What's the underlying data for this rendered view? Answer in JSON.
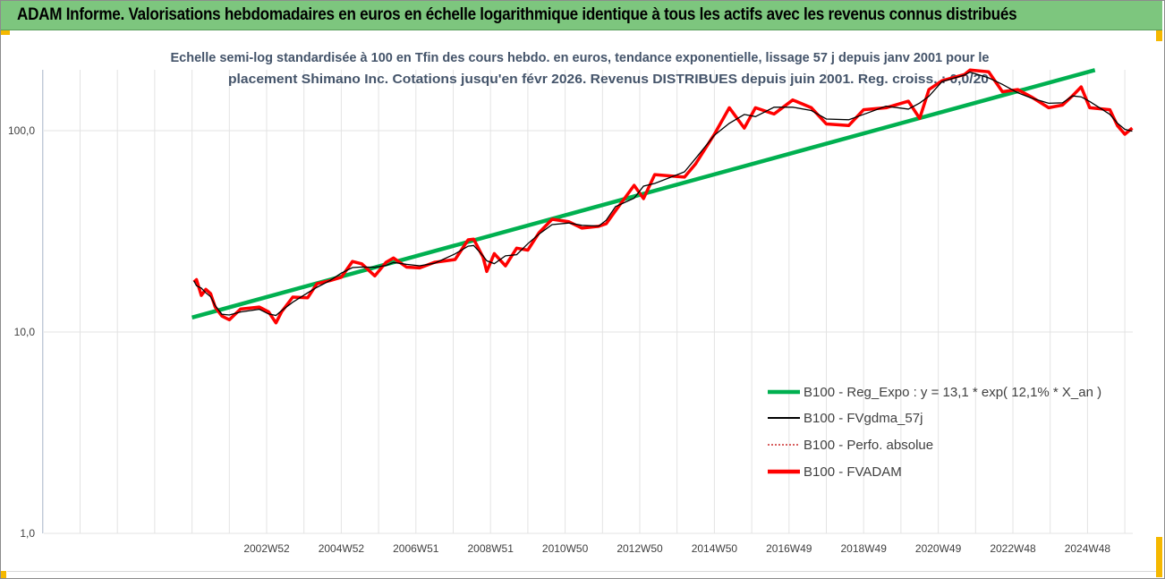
{
  "header": {
    "title": "ADAM Informe. Valorisations hebdomadaires en euros en échelle logarithmique identique à tous les actifs avec les revenus connus distribués"
  },
  "chart_data": {
    "type": "line",
    "title_lines": [
      "Echelle semi-log standardisée à 100 en Tfin des cours hebdo. en euros, tendance exponentielle, lissage 57 j depuis janv 2001 pour le",
      "placement Shimano Inc. Cotations jusqu'en févr 2026. Revenus DISTRIBUES depuis juin 2001. Reg. croiss. : 0,0/20"
    ],
    "y_scale": "log",
    "ylim": [
      1,
      200
    ],
    "xlim": [
      1997.0,
      2026.3
    ],
    "y_ticks": [
      {
        "value": 1,
        "label": "1,0"
      },
      {
        "value": 10,
        "label": "10,0"
      },
      {
        "value": 100,
        "label": "100,0"
      }
    ],
    "x_ticks": [
      {
        "value": 2003.0,
        "label": "2002W52"
      },
      {
        "value": 2005.0,
        "label": "2004W52"
      },
      {
        "value": 2007.0,
        "label": "2006W51"
      },
      {
        "value": 2009.0,
        "label": "2008W51"
      },
      {
        "value": 2011.0,
        "label": "2010W50"
      },
      {
        "value": 2013.0,
        "label": "2012W50"
      },
      {
        "value": 2015.0,
        "label": "2014W50"
      },
      {
        "value": 2017.0,
        "label": "2016W49"
      },
      {
        "value": 2019.0,
        "label": "2018W49"
      },
      {
        "value": 2021.0,
        "label": "2020W49"
      },
      {
        "value": 2023.0,
        "label": "2022W48"
      },
      {
        "value": 2025.0,
        "label": "2024W48"
      }
    ],
    "grid": {
      "vertical": true,
      "horizontal": true
    },
    "legend_placement": "bottom-right",
    "series": [
      {
        "name": "B100 - Reg_Expo : y = 13,1 * exp( 12,1% *  X_an )",
        "color": "#00b050",
        "style": "thick",
        "points": [
          [
            2001.0,
            11.8
          ],
          [
            2025.2,
            200
          ]
        ]
      },
      {
        "name": "B100 - FVgdma_57j",
        "color": "#000000",
        "style": "thin",
        "smoothing_of": "B100 - FVADAM"
      },
      {
        "name": "B100 - Perfo. absolue",
        "color": "#c00000",
        "style": "dotted",
        "points": []
      },
      {
        "name": "B100 - FVADAM",
        "color": "#ff0000",
        "style": "thick",
        "points": [
          [
            2001.05,
            17.7
          ],
          [
            2001.12,
            18.2
          ],
          [
            2001.25,
            15.2
          ],
          [
            2001.37,
            16.3
          ],
          [
            2001.5,
            15.5
          ],
          [
            2001.62,
            13.3
          ],
          [
            2001.8,
            12.0
          ],
          [
            2002.0,
            11.5
          ],
          [
            2002.3,
            13.0
          ],
          [
            2002.8,
            13.3
          ],
          [
            2003.05,
            12.6
          ],
          [
            2003.25,
            11.1
          ],
          [
            2003.4,
            12.6
          ],
          [
            2003.7,
            14.9
          ],
          [
            2004.1,
            14.8
          ],
          [
            2004.35,
            17.4
          ],
          [
            2004.7,
            18.0
          ],
          [
            2005.0,
            18.7
          ],
          [
            2005.3,
            22.4
          ],
          [
            2005.55,
            21.8
          ],
          [
            2005.9,
            19.0
          ],
          [
            2006.2,
            22.2
          ],
          [
            2006.4,
            23.3
          ],
          [
            2006.75,
            21.0
          ],
          [
            2007.1,
            20.8
          ],
          [
            2007.5,
            22.2
          ],
          [
            2008.05,
            22.9
          ],
          [
            2008.4,
            28.7
          ],
          [
            2008.55,
            28.9
          ],
          [
            2008.8,
            23.5
          ],
          [
            2008.9,
            20.0
          ],
          [
            2009.1,
            24.5
          ],
          [
            2009.4,
            21.3
          ],
          [
            2009.7,
            26.1
          ],
          [
            2010.0,
            25.5
          ],
          [
            2010.3,
            31.1
          ],
          [
            2010.65,
            36.3
          ],
          [
            2011.1,
            35.3
          ],
          [
            2011.45,
            32.8
          ],
          [
            2011.9,
            33.5
          ],
          [
            2012.1,
            34.5
          ],
          [
            2012.35,
            40
          ],
          [
            2012.85,
            53.5
          ],
          [
            2013.1,
            46
          ],
          [
            2013.4,
            60.5
          ],
          [
            2014.2,
            58.8
          ],
          [
            2014.5,
            68.5
          ],
          [
            2015.0,
            96
          ],
          [
            2015.4,
            130
          ],
          [
            2015.8,
            103
          ],
          [
            2016.1,
            130
          ],
          [
            2016.6,
            121
          ],
          [
            2017.1,
            142
          ],
          [
            2017.6,
            130
          ],
          [
            2018.0,
            108
          ],
          [
            2018.6,
            106
          ],
          [
            2019.0,
            127
          ],
          [
            2019.6,
            130
          ],
          [
            2020.2,
            140
          ],
          [
            2020.5,
            115
          ],
          [
            2020.75,
            160
          ],
          [
            2021.1,
            177
          ],
          [
            2021.7,
            190
          ],
          [
            2021.85,
            200
          ],
          [
            2022.35,
            196
          ],
          [
            2022.72,
            156
          ],
          [
            2023.13,
            160
          ],
          [
            2023.5,
            147
          ],
          [
            2023.96,
            130
          ],
          [
            2024.33,
            134
          ],
          [
            2024.6,
            149
          ],
          [
            2024.83,
            165
          ],
          [
            2025.06,
            130
          ],
          [
            2025.6,
            127
          ],
          [
            2025.8,
            106
          ],
          [
            2026.0,
            96
          ],
          [
            2026.2,
            103
          ]
        ]
      }
    ]
  }
}
